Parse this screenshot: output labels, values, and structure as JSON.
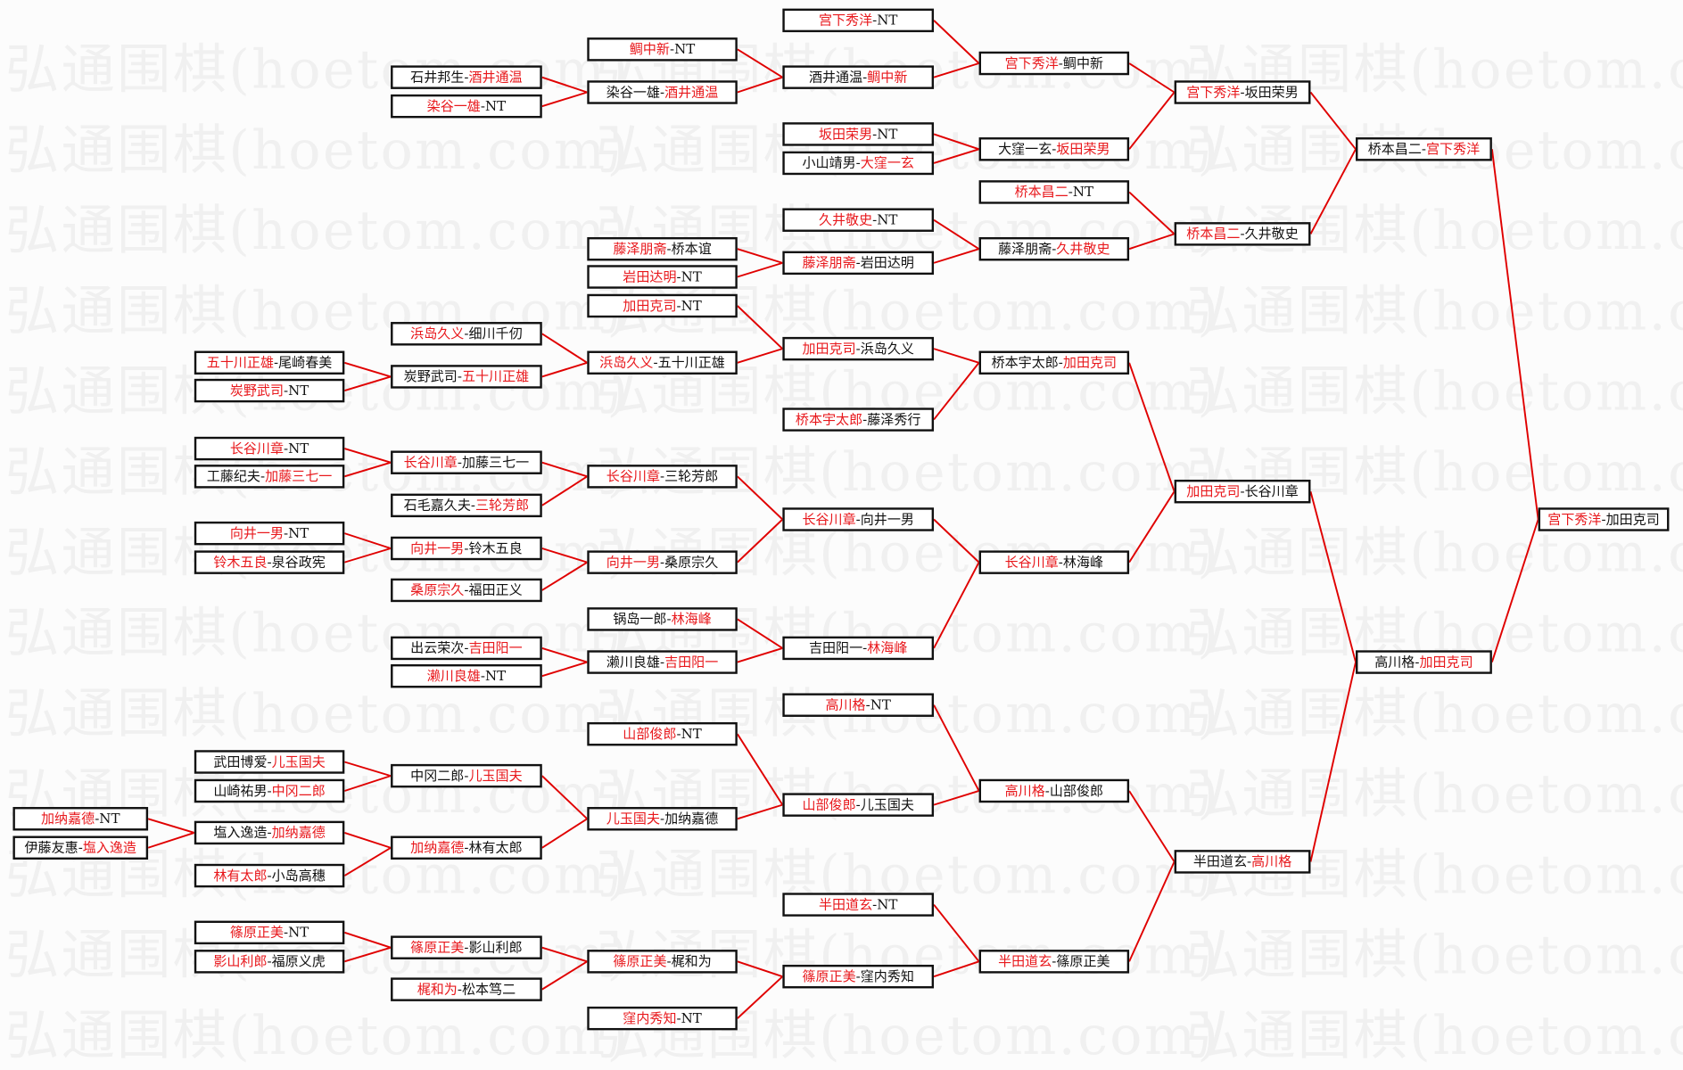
{
  "watermark": "弘通围棋(hoetom.com)",
  "colors": {
    "winner": "#e8181c",
    "line": "#e00000",
    "box_border": "#111111"
  },
  "separator": "-",
  "matches": [
    {
      "p": [
        "宫下秀洋",
        "加田克司"
      ],
      "w": 0,
      "next": null
    },
    {
      "p": [
        "桥本昌二",
        "宫下秀洋"
      ],
      "w": 1,
      "next": 0
    },
    {
      "p": [
        "高川格",
        "加田克司"
      ],
      "w": 1,
      "next": 0
    },
    {
      "p": [
        "宫下秀洋",
        "坂田荣男"
      ],
      "w": 0,
      "next": 1
    },
    {
      "p": [
        "桥本昌二",
        "久井敬史"
      ],
      "w": 0,
      "next": 1
    },
    {
      "p": [
        "加田克司",
        "长谷川章"
      ],
      "w": 0,
      "next": 2
    },
    {
      "p": [
        "半田道玄",
        "高川格"
      ],
      "w": 1,
      "next": 2
    },
    {
      "p": [
        "宫下秀洋",
        "鲷中新"
      ],
      "w": 0,
      "next": 3
    },
    {
      "p": [
        "大窪一玄",
        "坂田荣男"
      ],
      "w": 1,
      "next": 3
    },
    {
      "p": [
        "桥本昌二",
        "NT"
      ],
      "w": 0,
      "next": 4
    },
    {
      "p": [
        "藤泽朋斋",
        "久井敬史"
      ],
      "w": 1,
      "next": 4
    },
    {
      "p": [
        "桥本宇太郎",
        "加田克司"
      ],
      "w": 1,
      "next": 5
    },
    {
      "p": [
        "长谷川章",
        "林海峰"
      ],
      "w": 0,
      "next": 5
    },
    {
      "p": [
        "高川格",
        "山部俊郎"
      ],
      "w": 0,
      "next": 6
    },
    {
      "p": [
        "半田道玄",
        "篠原正美"
      ],
      "w": 0,
      "next": 6
    },
    {
      "p": [
        "宫下秀洋",
        "NT"
      ],
      "w": 0,
      "next": 7
    },
    {
      "p": [
        "酒井通温",
        "鲷中新"
      ],
      "w": 1,
      "next": 7
    },
    {
      "p": [
        "坂田荣男",
        "NT"
      ],
      "w": 0,
      "next": 8
    },
    {
      "p": [
        "小山靖男",
        "大窪一玄"
      ],
      "w": 1,
      "next": 8
    },
    {
      "p": [
        "久井敬史",
        "NT"
      ],
      "w": 0,
      "next": 10
    },
    {
      "p": [
        "藤泽朋斋",
        "岩田达明"
      ],
      "w": 0,
      "next": 10
    },
    {
      "p": [
        "加田克司",
        "浜岛久义"
      ],
      "w": 0,
      "next": 11
    },
    {
      "p": [
        "桥本宇太郎",
        "藤泽秀行"
      ],
      "w": 0,
      "next": 11
    },
    {
      "p": [
        "长谷川章",
        "向井一男"
      ],
      "w": 0,
      "next": 12
    },
    {
      "p": [
        "吉田阳一",
        "林海峰"
      ],
      "w": 1,
      "next": 12
    },
    {
      "p": [
        "高川格",
        "NT"
      ],
      "w": 0,
      "next": 13
    },
    {
      "p": [
        "山部俊郎",
        "儿玉国夫"
      ],
      "w": 0,
      "next": 13
    },
    {
      "p": [
        "半田道玄",
        "NT"
      ],
      "w": 0,
      "next": 14
    },
    {
      "p": [
        "篠原正美",
        "窪内秀知"
      ],
      "w": 0,
      "next": 14
    },
    {
      "p": [
        "鲷中新",
        "NT"
      ],
      "w": 0,
      "next": 16
    },
    {
      "p": [
        "染谷一雄",
        "酒井通温"
      ],
      "w": 1,
      "next": 16
    },
    {
      "p": [
        "藤泽朋斋",
        "桥本谊"
      ],
      "w": 0,
      "next": 20
    },
    {
      "p": [
        "岩田达明",
        "NT"
      ],
      "w": 0,
      "next": 20
    },
    {
      "p": [
        "加田克司",
        "NT"
      ],
      "w": 0,
      "next": 21
    },
    {
      "p": [
        "浜岛久义",
        "五十川正雄"
      ],
      "w": 0,
      "next": 21
    },
    {
      "p": [
        "长谷川章",
        "三轮芳郎"
      ],
      "w": 0,
      "next": 23
    },
    {
      "p": [
        "向井一男",
        "桑原宗久"
      ],
      "w": 0,
      "next": 23
    },
    {
      "p": [
        "锅岛一郎",
        "林海峰"
      ],
      "w": 1,
      "next": 24
    },
    {
      "p": [
        "濑川良雄",
        "吉田阳一"
      ],
      "w": 1,
      "next": 24
    },
    {
      "p": [
        "山部俊郎",
        "NT"
      ],
      "w": 0,
      "next": 26
    },
    {
      "p": [
        "儿玉国夫",
        "加纳嘉德"
      ],
      "w": 0,
      "next": 26
    },
    {
      "p": [
        "篠原正美",
        "梶和为"
      ],
      "w": 0,
      "next": 28
    },
    {
      "p": [
        "窪内秀知",
        "NT"
      ],
      "w": 0,
      "next": 28
    },
    {
      "p": [
        "石井邦生",
        "酒井通温"
      ],
      "w": 1,
      "next": 30
    },
    {
      "p": [
        "染谷一雄",
        "NT"
      ],
      "w": 0,
      "next": 30
    },
    {
      "p": [
        "浜岛久义",
        "细川千仞"
      ],
      "w": 0,
      "next": 34
    },
    {
      "p": [
        "炭野武司",
        "五十川正雄"
      ],
      "w": 1,
      "next": 34
    },
    {
      "p": [
        "长谷川章",
        "加藤三七一"
      ],
      "w": 0,
      "next": 35
    },
    {
      "p": [
        "石毛嘉久夫",
        "三轮芳郎"
      ],
      "w": 1,
      "next": 35
    },
    {
      "p": [
        "向井一男",
        "铃木五良"
      ],
      "w": 0,
      "next": 36
    },
    {
      "p": [
        "桑原宗久",
        "福田正义"
      ],
      "w": 0,
      "next": 36
    },
    {
      "p": [
        "出云荣次",
        "吉田阳一"
      ],
      "w": 1,
      "next": 38
    },
    {
      "p": [
        "濑川良雄",
        "NT"
      ],
      "w": 0,
      "next": 38
    },
    {
      "p": [
        "中冈二郎",
        "儿玉国夫"
      ],
      "w": 1,
      "next": 40
    },
    {
      "p": [
        "加纳嘉德",
        "林有太郎"
      ],
      "w": 0,
      "next": 40
    },
    {
      "p": [
        "篠原正美",
        "影山利郎"
      ],
      "w": 0,
      "next": 41
    },
    {
      "p": [
        "梶和为",
        "松本笃二"
      ],
      "w": 0,
      "next": 41
    },
    {
      "p": [
        "五十川正雄",
        "尾崎春美"
      ],
      "w": 0,
      "next": 46
    },
    {
      "p": [
        "炭野武司",
        "NT"
      ],
      "w": 0,
      "next": 46
    },
    {
      "p": [
        "长谷川章",
        "NT"
      ],
      "w": 0,
      "next": 47
    },
    {
      "p": [
        "工藤纪夫",
        "加藤三七一"
      ],
      "w": 1,
      "next": 47
    },
    {
      "p": [
        "向井一男",
        "NT"
      ],
      "w": 0,
      "next": 49
    },
    {
      "p": [
        "铃木五良",
        "泉谷政宪"
      ],
      "w": 0,
      "next": 49
    },
    {
      "p": [
        "武田博爱",
        "儿玉国夫"
      ],
      "w": 1,
      "next": 53
    },
    {
      "p": [
        "山崎祐男",
        "中冈二郎"
      ],
      "w": 1,
      "next": 53
    },
    {
      "p": [
        "塩入逸造",
        "加纳嘉德"
      ],
      "w": 1,
      "next": 54
    },
    {
      "p": [
        "林有太郎",
        "小岛高穗"
      ],
      "w": 0,
      "next": 54
    },
    {
      "p": [
        "篠原正美",
        "NT"
      ],
      "w": 0,
      "next": 55
    },
    {
      "p": [
        "影山利郎",
        "福原义虎"
      ],
      "w": 0,
      "next": 55
    },
    {
      "p": [
        "加纳嘉德",
        "NT"
      ],
      "w": 0,
      "next": 65
    },
    {
      "p": [
        "伊藤友惠",
        "塩入逸造"
      ],
      "w": 1,
      "next": 65
    }
  ]
}
